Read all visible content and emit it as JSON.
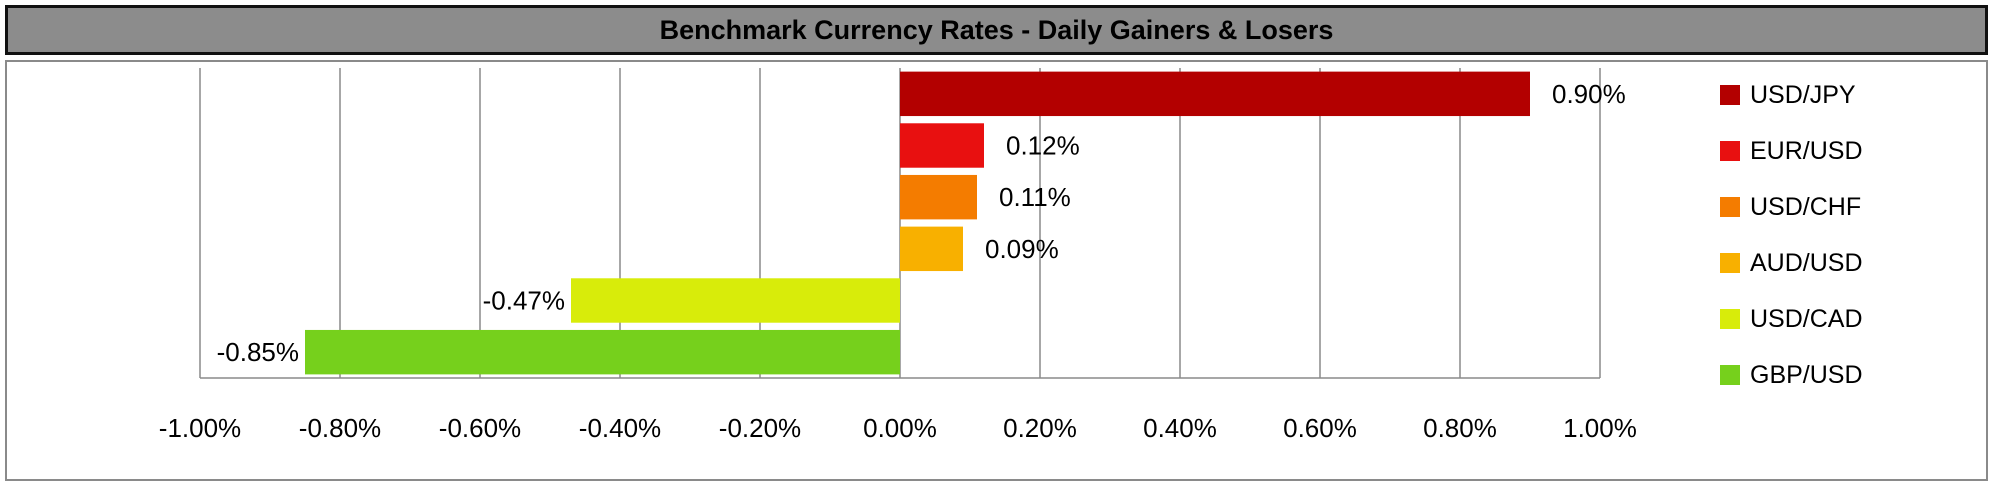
{
  "chart_data": {
    "type": "bar",
    "orientation": "horizontal",
    "title": "Benchmark Currency Rates - Daily Gainers & Losers",
    "categories": [
      "USD/JPY",
      "EUR/USD",
      "USD/CHF",
      "AUD/USD",
      "USD/CAD",
      "GBP/USD"
    ],
    "values": [
      0.9,
      0.12,
      0.11,
      0.09,
      -0.47,
      -0.85
    ],
    "data_labels": [
      "0.90%",
      "0.12%",
      "0.11%",
      "0.09%",
      "-0.47%",
      "-0.85%"
    ],
    "colors": [
      "#b30000",
      "#e81010",
      "#f47c00",
      "#f8b000",
      "#d8ec0a",
      "#76d01c"
    ],
    "xlim": [
      -1.0,
      1.0
    ],
    "x_ticks": [
      -1.0,
      -0.8,
      -0.6,
      -0.4,
      -0.2,
      0.0,
      0.2,
      0.4,
      0.6,
      0.8,
      1.0
    ],
    "x_tick_labels": [
      "-1.00%",
      "-0.80%",
      "-0.60%",
      "-0.40%",
      "-0.20%",
      "0.00%",
      "0.20%",
      "0.40%",
      "0.60%",
      "0.80%",
      "1.00%"
    ],
    "grid": "vertical",
    "legend": "right"
  }
}
